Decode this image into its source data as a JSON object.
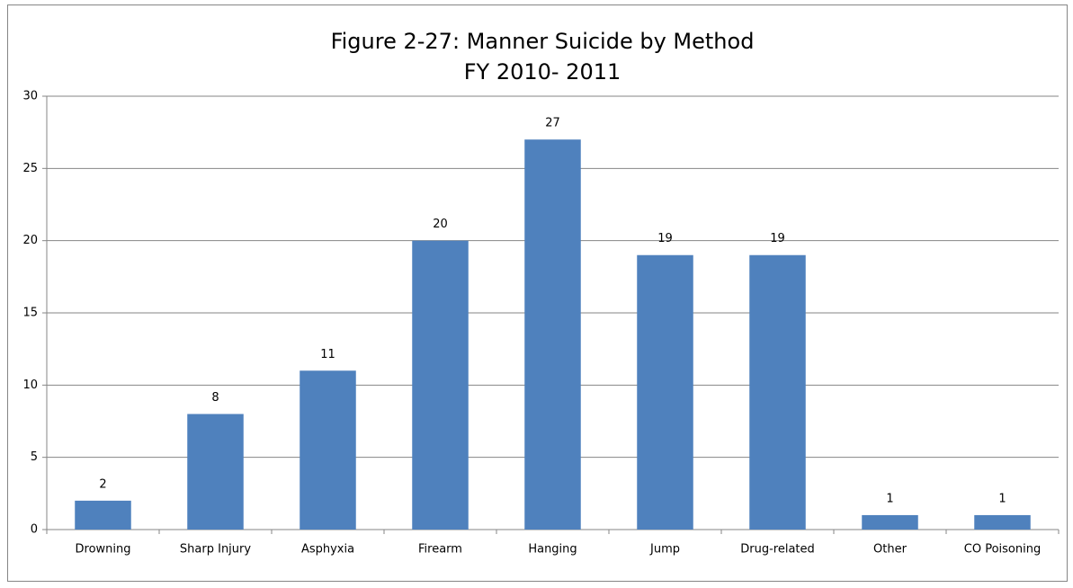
{
  "chart_data": {
    "type": "bar",
    "title": "Figure 2-27: Manner Suicide by Method",
    "subtitle": "FY 2010- 2011",
    "categories": [
      "Drowning",
      "Sharp Injury",
      "Asphyxia",
      "Firearm",
      "Hanging",
      "Jump",
      "Drug-related",
      "Other",
      "CO Poisoning"
    ],
    "values": [
      2,
      8,
      11,
      20,
      27,
      19,
      19,
      1,
      1
    ],
    "color": "#4f81bd",
    "ylim": [
      0,
      30
    ],
    "yticks": [
      0,
      5,
      10,
      15,
      20,
      25,
      30
    ],
    "grid": true
  }
}
